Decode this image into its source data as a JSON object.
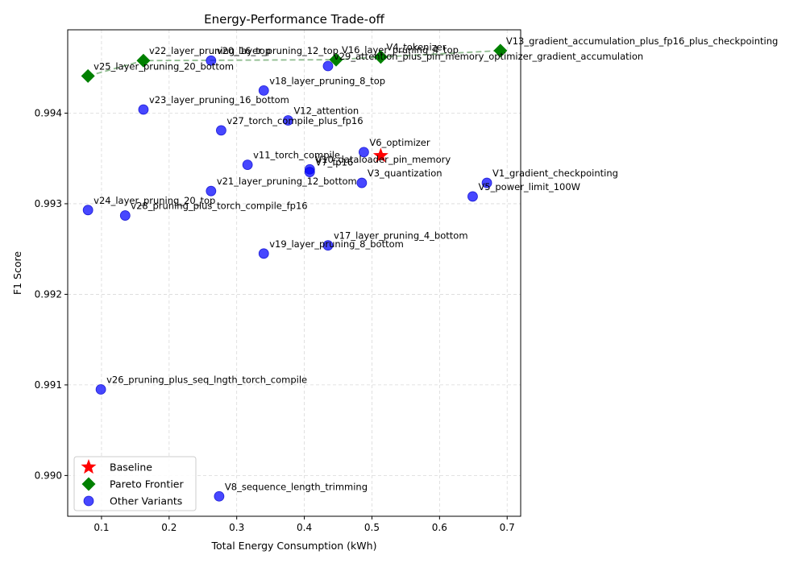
{
  "chart_data": {
    "type": "scatter",
    "title": "Energy-Performance Trade-off",
    "xlabel": "Total Energy Consumption (kWh)",
    "ylabel": "F1 Score",
    "xlim": [
      0.05,
      0.72
    ],
    "ylim": [
      0.98955,
      0.99492
    ],
    "x_ticks": [
      0.1,
      0.2,
      0.3,
      0.4,
      0.5,
      0.6,
      0.7
    ],
    "x_tick_labels": [
      "0.1",
      "0.2",
      "0.3",
      "0.4",
      "0.5",
      "0.6",
      "0.7"
    ],
    "y_ticks": [
      0.99,
      0.991,
      0.992,
      0.993,
      0.994
    ],
    "y_tick_labels": [
      "0.990",
      "0.991",
      "0.992",
      "0.993",
      "0.994"
    ],
    "grid": true,
    "legend_placement": "bottom-left",
    "colors": {
      "baseline": "#ff0000",
      "pareto": "#008000",
      "other": "#0000ff",
      "frontier_line": "#8fbc8f"
    },
    "legend": [
      {
        "key": "baseline",
        "label": "Baseline"
      },
      {
        "key": "pareto",
        "label": "Pareto Frontier"
      },
      {
        "key": "other",
        "label": "Other Variants"
      }
    ],
    "series": [
      {
        "name": "Baseline",
        "marker": "star",
        "points": [
          {
            "label": "",
            "x": 0.513,
            "y": 0.99353
          }
        ]
      },
      {
        "name": "Pareto Frontier",
        "marker": "diamond",
        "points": [
          {
            "label": "V13_gradient_accumulation_plus_fp16_plus_checkpointing",
            "x": 0.69,
            "y": 0.99469
          },
          {
            "label": "v22_layer_pruning_16_top",
            "x": 0.162,
            "y": 0.99458
          },
          {
            "label": "v25_layer_pruning_20_bottom",
            "x": 0.08,
            "y": 0.99441
          },
          {
            "label": "V16_layer_pruning_4_top",
            "x": 0.447,
            "y": 0.99459
          },
          {
            "label": "V4_tokenizer",
            "x": 0.513,
            "y": 0.99462
          }
        ]
      },
      {
        "name": "Other Variants",
        "marker": "circle",
        "points": [
          {
            "label": "v20_layer_pruning_12_top",
            "x": 0.262,
            "y": 0.99458
          },
          {
            "label": "v29_attention_plus_pin_memory_optimizer_gradient_accumulation",
            "x": 0.435,
            "y": 0.99452
          },
          {
            "label": "v18_layer_pruning_8_top",
            "x": 0.34,
            "y": 0.99425
          },
          {
            "label": "v23_layer_pruning_16_bottom",
            "x": 0.162,
            "y": 0.99404
          },
          {
            "label": "V12_attention",
            "x": 0.376,
            "y": 0.99392
          },
          {
            "label": "v27_torch_compile_plus_fp16",
            "x": 0.277,
            "y": 0.99381
          },
          {
            "label": "V6_optimizer",
            "x": 0.488,
            "y": 0.99357
          },
          {
            "label": "v11_torch_compile",
            "x": 0.316,
            "y": 0.99343
          },
          {
            "label": "V10_dataloader_pin_memory",
            "x": 0.408,
            "y": 0.99338
          },
          {
            "label": "V7_fp16",
            "x": 0.408,
            "y": 0.99335
          },
          {
            "label": "V3_quantization",
            "x": 0.485,
            "y": 0.99323
          },
          {
            "label": "V1_gradient_checkpointing",
            "x": 0.67,
            "y": 0.99323
          },
          {
            "label": "v21_layer_pruning_12_bottom",
            "x": 0.262,
            "y": 0.99314
          },
          {
            "label": "V5_power_limit_100W",
            "x": 0.649,
            "y": 0.99308
          },
          {
            "label": "v24_layer_pruning_20_top",
            "x": 0.08,
            "y": 0.99293
          },
          {
            "label": "v28_pruning_plus_torch_compile_fp16",
            "x": 0.135,
            "y": 0.99287
          },
          {
            "label": "v17_layer_pruning_4_bottom",
            "x": 0.435,
            "y": 0.99254
          },
          {
            "label": "v19_layer_pruning_8_bottom",
            "x": 0.34,
            "y": 0.99245
          },
          {
            "label": "v26_pruning_plus_seq_lngth_torch_compile",
            "x": 0.099,
            "y": 0.99095
          },
          {
            "label": "V8_sequence_length_trimming",
            "x": 0.274,
            "y": 0.98977
          }
        ]
      }
    ],
    "frontier_line_points": [
      {
        "x": 0.08,
        "y": 0.99441
      },
      {
        "x": 0.162,
        "y": 0.99458
      },
      {
        "x": 0.447,
        "y": 0.99459
      },
      {
        "x": 0.513,
        "y": 0.99462
      },
      {
        "x": 0.69,
        "y": 0.99469
      }
    ]
  }
}
